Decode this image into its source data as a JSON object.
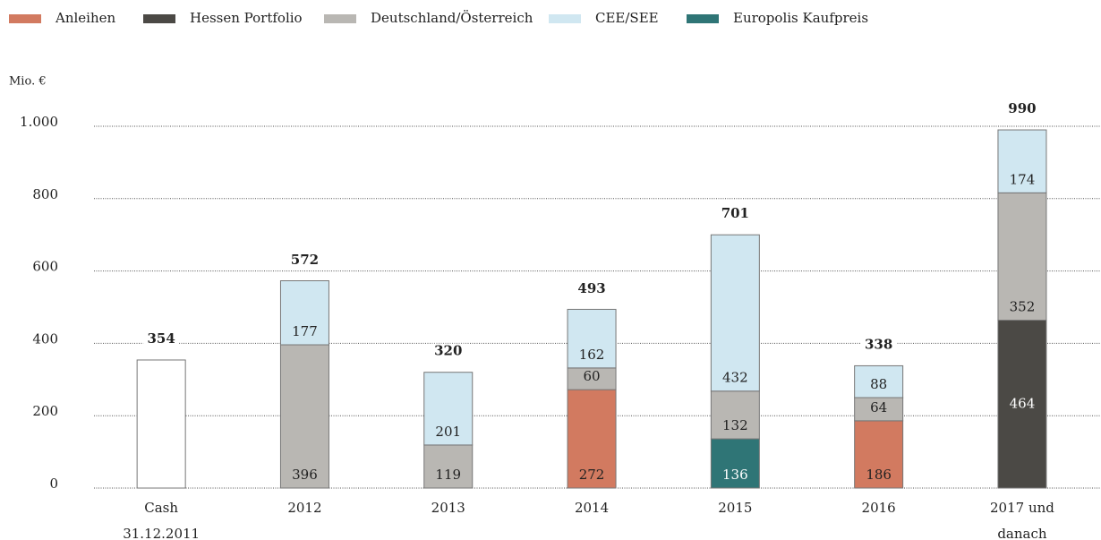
{
  "chart_data": {
    "type": "bar",
    "stacked": true,
    "y_label": "Mio. €",
    "categories": [
      [
        "Cash",
        "31.12.2011"
      ],
      [
        "2012"
      ],
      [
        "2013"
      ],
      [
        "2014"
      ],
      [
        "2015"
      ],
      [
        "2016"
      ],
      [
        "2017 und",
        "danach"
      ]
    ],
    "series": [
      {
        "name": "Anleihen",
        "color": "#d27a60",
        "values": [
          null,
          null,
          null,
          272,
          null,
          186,
          null
        ]
      },
      {
        "name": "Hessen Portfolio",
        "color": "#4b4945",
        "values": [
          null,
          null,
          null,
          null,
          null,
          null,
          464
        ]
      },
      {
        "name": "Deutschland/Österreich",
        "color": "#b9b7b3",
        "values": [
          null,
          396,
          119,
          60,
          132,
          64,
          352
        ]
      },
      {
        "name": "CEE/SEE",
        "color": "#d0e7f1",
        "values": [
          null,
          177,
          201,
          162,
          432,
          88,
          174
        ]
      },
      {
        "name": "Europolis Kaufpreis",
        "color": "#2f7576",
        "values": [
          null,
          null,
          null,
          null,
          136,
          null,
          null
        ]
      },
      {
        "color": "#ffffff",
        "values": [
          354,
          null,
          null,
          null,
          null,
          null,
          null
        ]
      }
    ],
    "totals": [
      354,
      572,
      320,
      493,
      701,
      338,
      990
    ],
    "ylim": [
      0,
      1000
    ],
    "yticks": [
      0,
      200,
      400,
      600,
      800,
      {
        "value": 1000,
        "label": "1.000"
      }
    ],
    "grid": true
  }
}
